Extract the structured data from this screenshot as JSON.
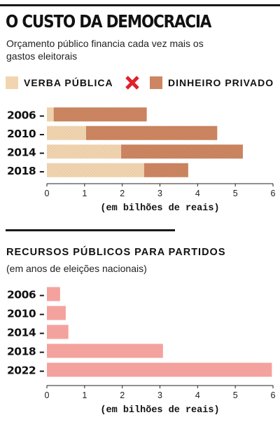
{
  "title": "O CUSTO DA DEMOCRACIA",
  "subtitle": "Orçamento público financia cada vez mais os gastos eleitorais",
  "legend": {
    "public_label": "VERBA PÚBLICA",
    "private_label": "DINHEIRO PRIVADO",
    "public_color": "#f2d5b0",
    "private_color": "#cd8661",
    "separator_icon": "red-x-icon",
    "separator_color": "#e0202a"
  },
  "section2": {
    "title": "RECURSOS PÚBLICOS PARA PARTIDOS",
    "subtitle": "(em anos de eleições nacionais)"
  },
  "chart_data": [
    {
      "type": "bar",
      "orientation": "horizontal",
      "stacked": true,
      "categories": [
        "2006",
        "2010",
        "2014",
        "2018"
      ],
      "series": [
        {
          "name": "VERBA PÚBLICA",
          "values": [
            0.18,
            1.04,
            1.97,
            2.58
          ],
          "color": "#f2d5b0"
        },
        {
          "name": "DINHEIRO PRIVADO",
          "values": [
            2.47,
            3.48,
            3.23,
            1.17
          ],
          "color": "#cd8661"
        }
      ],
      "xlabel": "(em bilhões de reais)",
      "xlim": [
        0,
        6
      ],
      "xticks": [
        0,
        1,
        2,
        3,
        4,
        5,
        6
      ],
      "grid": false
    },
    {
      "type": "bar",
      "orientation": "horizontal",
      "categories": [
        "2006",
        "2010",
        "2014",
        "2018",
        "2022"
      ],
      "series": [
        {
          "values": [
            0.35,
            0.5,
            0.57,
            3.08,
            5.97
          ],
          "color": "#f4a29d"
        }
      ],
      "xlabel": "(em bilhões de reais)",
      "xlim": [
        0,
        6
      ],
      "xticks": [
        0,
        1,
        2,
        3,
        4,
        5,
        6
      ],
      "grid": false
    }
  ]
}
